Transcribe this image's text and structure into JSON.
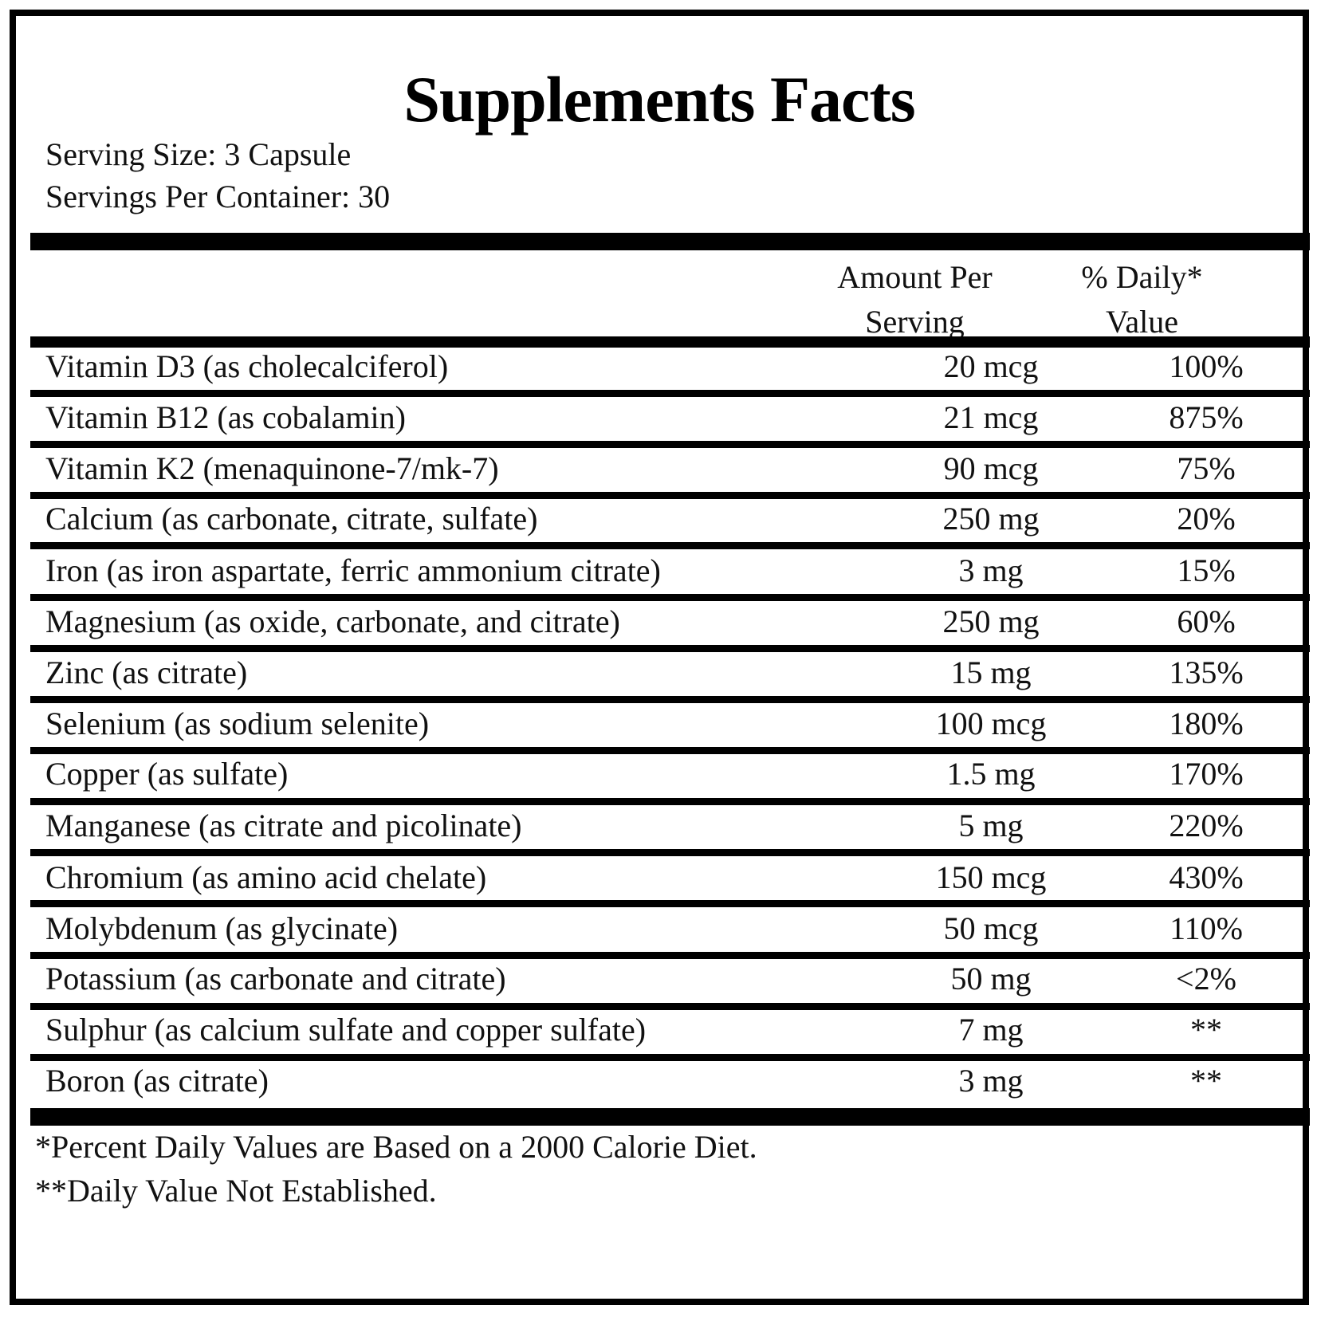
{
  "title": "Supplements Facts",
  "serving_size": "Serving Size: 3 Capsule",
  "servings_per_container": "Servings Per Container: 30",
  "header": {
    "amount_line1": "Amount Per",
    "amount_line2": "Serving",
    "dv_line1": "% Daily*",
    "dv_line2": "Value"
  },
  "rows": [
    {
      "name": "Vitamin D3 (as cholecalciferol)",
      "amount": "20 mcg",
      "dv": "100%"
    },
    {
      "name": "Vitamin B12 (as cobalamin)",
      "amount": "21 mcg",
      "dv": "875%"
    },
    {
      "name": "Vitamin K2 (menaquinone-7/mk-7)",
      "amount": "90 mcg",
      "dv": "75%"
    },
    {
      "name": "Calcium (as carbonate, citrate, sulfate)",
      "amount": "250 mg",
      "dv": "20%"
    },
    {
      "name": "Iron (as iron aspartate, ferric ammonium citrate)",
      "amount": "3 mg",
      "dv": "15%"
    },
    {
      "name": "Magnesium (as oxide, carbonate, and citrate)",
      "amount": "250 mg",
      "dv": "60%"
    },
    {
      "name": "Zinc (as citrate)",
      "amount": "15 mg",
      "dv": "135%"
    },
    {
      "name": "Selenium (as sodium selenite)",
      "amount": "100 mcg",
      "dv": "180%"
    },
    {
      "name": "Copper (as sulfate)",
      "amount": "1.5 mg",
      "dv": "170%"
    },
    {
      "name": "Manganese (as citrate and picolinate)",
      "amount": "5 mg",
      "dv": "220%"
    },
    {
      "name": "Chromium (as amino acid chelate)",
      "amount": "150 mcg",
      "dv": "430%"
    },
    {
      "name": "Molybdenum (as glycinate)",
      "amount": "50 mcg",
      "dv": "110%"
    },
    {
      "name": "Potassium (as carbonate and citrate)",
      "amount": "50 mg",
      "dv": "<2%"
    },
    {
      "name": "Sulphur (as calcium sulfate and copper sulfate)",
      "amount": "7 mg",
      "dv": "**"
    },
    {
      "name": "Boron (as citrate)",
      "amount": "3 mg",
      "dv": "**"
    }
  ],
  "footnotes": [
    "*Percent Daily Values are Based on a 2000 Calorie Diet.",
    "**Daily Value Not Established."
  ]
}
